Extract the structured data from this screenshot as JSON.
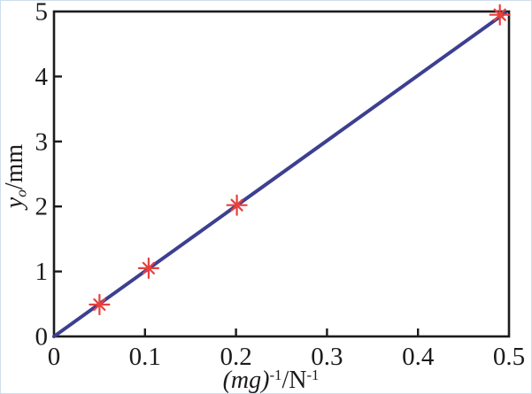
{
  "figure": {
    "background": "#ffffff",
    "frame_border_color": "#cddee9"
  },
  "labels": {
    "y_var": "y",
    "y_sub": "o",
    "y_unit": "/mm",
    "x_group": "(mg)",
    "x_sup1": "-1",
    "x_mid": "/N",
    "x_sup2": "-1"
  },
  "chart_data": {
    "type": "scatter",
    "title": "",
    "xlabel": "(mg)^-1/N^-1",
    "ylabel": "y_o/mm",
    "xlim": [
      0,
      0.5
    ],
    "ylim": [
      0,
      5
    ],
    "xticks": [
      0,
      0.1,
      0.2,
      0.3,
      0.4,
      0.5
    ],
    "xtick_labels": [
      "0",
      "0.1",
      "0.2",
      "0.3",
      "0.4",
      "0.5"
    ],
    "yticks": [
      0,
      1,
      2,
      3,
      4,
      5
    ],
    "ytick_labels": [
      "0",
      "1",
      "2",
      "3",
      "4",
      "5"
    ],
    "axis_color": "#1b1b1b",
    "grid": false,
    "legend": null,
    "series": [
      {
        "name": "linear-fit",
        "type": "line",
        "color": "#3d3f90",
        "line_width": 4,
        "x": [
          0,
          0.496
        ],
        "y": [
          0,
          4.98
        ]
      },
      {
        "name": "measured-points",
        "type": "scatter",
        "marker": "asterisk-8ray",
        "color": "#e8403c",
        "marker_size": 22,
        "x": [
          0.05,
          0.104,
          0.201,
          0.49
        ],
        "y": [
          0.49,
          1.05,
          2.02,
          4.95
        ]
      }
    ]
  }
}
